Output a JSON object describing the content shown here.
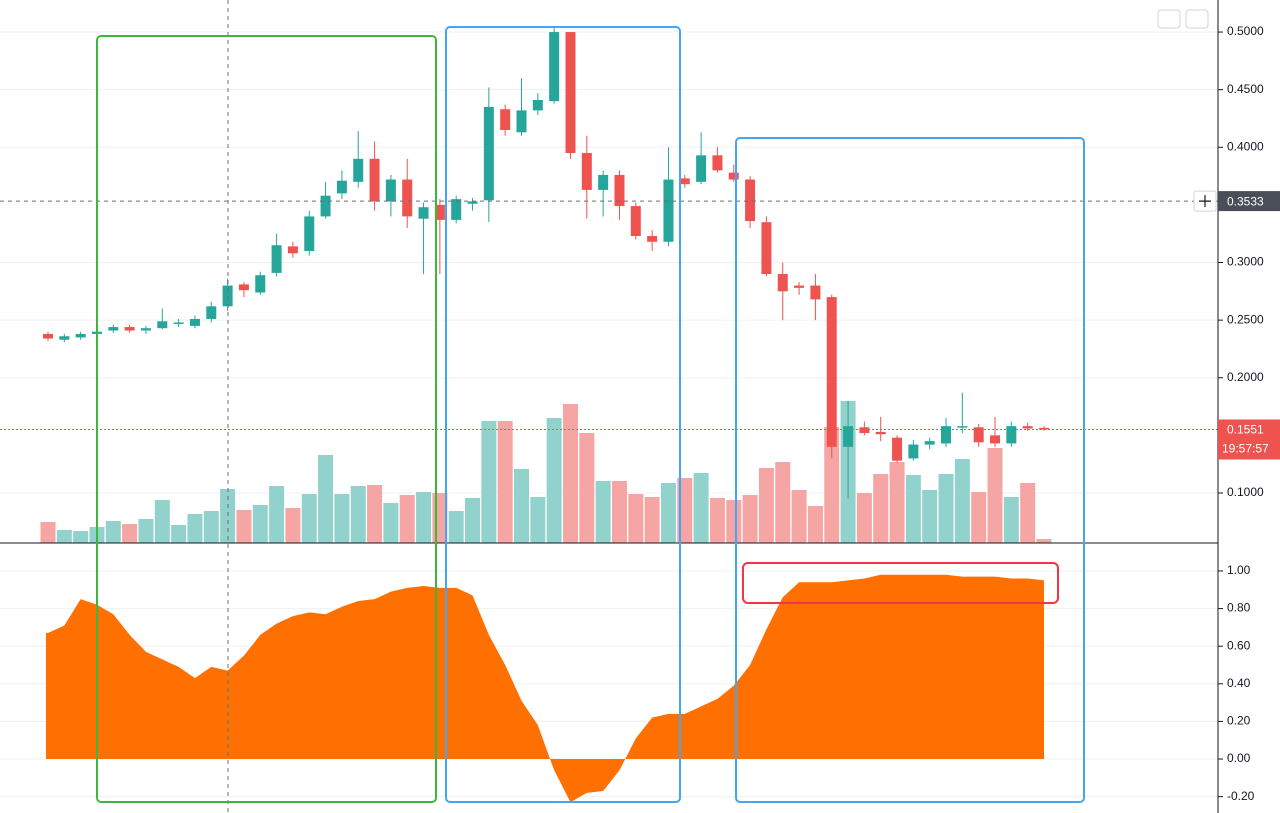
{
  "chart_data": [
    {
      "type": "candlestick",
      "open": [
        0.238,
        0.233,
        0.235,
        0.238,
        0.241,
        0.244,
        0.241,
        0.243,
        0.247,
        0.245,
        0.251,
        0.262,
        0.281,
        0.274,
        0.291,
        0.314,
        0.31,
        0.34,
        0.36,
        0.37,
        0.39,
        0.353,
        0.372,
        0.338,
        0.35,
        0.337,
        0.351,
        0.354,
        0.433,
        0.413,
        0.432,
        0.44,
        0.5,
        0.395,
        0.363,
        0.376,
        0.349,
        0.323,
        0.318,
        0.373,
        0.37,
        0.393,
        0.378,
        0.372,
        0.335,
        0.29,
        0.28,
        0.28,
        0.27,
        0.14,
        0.157,
        0.153,
        0.148,
        0.13,
        0.142,
        0.143,
        0.157,
        0.157,
        0.15,
        0.143,
        0.158,
        0.1565
      ],
      "high": [
        0.24,
        0.238,
        0.24,
        0.242,
        0.246,
        0.246,
        0.245,
        0.26,
        0.251,
        0.254,
        0.266,
        0.286,
        0.283,
        0.292,
        0.325,
        0.318,
        0.345,
        0.37,
        0.38,
        0.414,
        0.405,
        0.376,
        0.39,
        0.352,
        0.355,
        0.358,
        0.356,
        0.452,
        0.437,
        0.46,
        0.447,
        0.505,
        0.5,
        0.41,
        0.38,
        0.38,
        0.352,
        0.328,
        0.4,
        0.376,
        0.413,
        0.4,
        0.385,
        0.375,
        0.34,
        0.3,
        0.283,
        0.29,
        0.272,
        0.18,
        0.162,
        0.166,
        0.15,
        0.146,
        0.148,
        0.165,
        0.187,
        0.16,
        0.166,
        0.162,
        0.161,
        0.158
      ],
      "low": [
        0.232,
        0.231,
        0.233,
        0.236,
        0.239,
        0.239,
        0.238,
        0.242,
        0.244,
        0.243,
        0.248,
        0.258,
        0.27,
        0.272,
        0.288,
        0.304,
        0.306,
        0.338,
        0.355,
        0.365,
        0.345,
        0.34,
        0.33,
        0.29,
        0.29,
        0.334,
        0.345,
        0.335,
        0.41,
        0.41,
        0.428,
        0.438,
        0.39,
        0.338,
        0.34,
        0.337,
        0.32,
        0.31,
        0.314,
        0.365,
        0.368,
        0.378,
        0.37,
        0.33,
        0.288,
        0.25,
        0.272,
        0.25,
        0.13,
        0.095,
        0.15,
        0.145,
        0.126,
        0.128,
        0.138,
        0.14,
        0.152,
        0.14,
        0.14,
        0.14,
        0.154,
        0.154
      ],
      "close": [
        0.234,
        0.236,
        0.238,
        0.24,
        0.244,
        0.241,
        0.243,
        0.249,
        0.248,
        0.251,
        0.262,
        0.28,
        0.276,
        0.289,
        0.315,
        0.308,
        0.34,
        0.358,
        0.371,
        0.39,
        0.353,
        0.372,
        0.34,
        0.348,
        0.337,
        0.355,
        0.353,
        0.435,
        0.415,
        0.432,
        0.441,
        0.5,
        0.395,
        0.363,
        0.376,
        0.349,
        0.323,
        0.318,
        0.372,
        0.368,
        0.393,
        0.38,
        0.372,
        0.336,
        0.29,
        0.275,
        0.278,
        0.268,
        0.14,
        0.158,
        0.152,
        0.151,
        0.128,
        0.142,
        0.145,
        0.158,
        0.158,
        0.144,
        0.143,
        0.158,
        0.156,
        0.1551
      ],
      "volume": [
        21,
        13,
        12,
        16,
        22,
        19,
        24,
        43,
        18,
        29,
        32,
        54,
        33,
        38,
        57,
        35,
        49,
        88,
        49,
        57,
        58,
        40,
        48,
        51,
        50,
        32,
        45,
        122,
        122,
        74,
        46,
        125,
        139,
        110,
        62,
        62,
        49,
        46,
        60,
        65,
        70,
        45,
        43,
        48,
        75,
        81,
        53,
        37,
        116,
        142,
        50,
        69,
        81,
        68,
        53,
        69,
        84,
        51,
        95,
        46,
        60,
        4
      ],
      "up_color": "#26a69a",
      "down_color": "#ef5350",
      "volume_up_color": "#92d2cc",
      "volume_down_color": "#f5a5a4",
      "ylim": [
        0.0566,
        0.5278
      ],
      "volume_ylim": [
        0,
        543
      ],
      "yticks": [
        {
          "value": 0.1,
          "label": "0.1000"
        },
        {
          "value": 0.2,
          "label": "0.2000"
        },
        {
          "value": 0.25,
          "label": "0.2500"
        },
        {
          "value": 0.3,
          "label": "0.3000"
        },
        {
          "value": 0.4,
          "label": "0.4000"
        },
        {
          "value": 0.45,
          "label": "0.4500"
        },
        {
          "value": 0.5,
          "label": "0.5000"
        }
      ],
      "grid": true,
      "crosshair_price": 0.3533,
      "last_price": 0.1551,
      "countdown": "19:57:57"
    },
    {
      "type": "area",
      "values": [
        0.67,
        0.71,
        0.85,
        0.82,
        0.77,
        0.66,
        0.57,
        0.53,
        0.49,
        0.43,
        0.49,
        0.47,
        0.55,
        0.66,
        0.72,
        0.76,
        0.78,
        0.77,
        0.81,
        0.84,
        0.85,
        0.89,
        0.91,
        0.92,
        0.91,
        0.91,
        0.87,
        0.66,
        0.5,
        0.31,
        0.18,
        -0.06,
        -0.23,
        -0.18,
        -0.17,
        -0.06,
        0.11,
        0.22,
        0.24,
        0.24,
        0.28,
        0.32,
        0.39,
        0.5,
        0.69,
        0.86,
        0.94,
        0.94,
        0.94,
        0.95,
        0.96,
        0.98,
        0.98,
        0.98,
        0.98,
        0.98,
        0.97,
        0.97,
        0.97,
        0.96,
        0.96,
        0.95
      ],
      "color": "#ff7000",
      "ylim": [
        -0.287,
        1.138
      ],
      "yticks": [
        {
          "value": -0.2,
          "label": "-0.20"
        },
        {
          "value": 0,
          "label": "0.00"
        },
        {
          "value": 0.2,
          "label": "0.20"
        },
        {
          "value": 0.4,
          "label": "0.40"
        },
        {
          "value": 0.6,
          "label": "0.60"
        },
        {
          "value": 0.8,
          "label": "0.80"
        },
        {
          "value": 1,
          "label": "1.00"
        }
      ],
      "grid": true
    }
  ]
}
